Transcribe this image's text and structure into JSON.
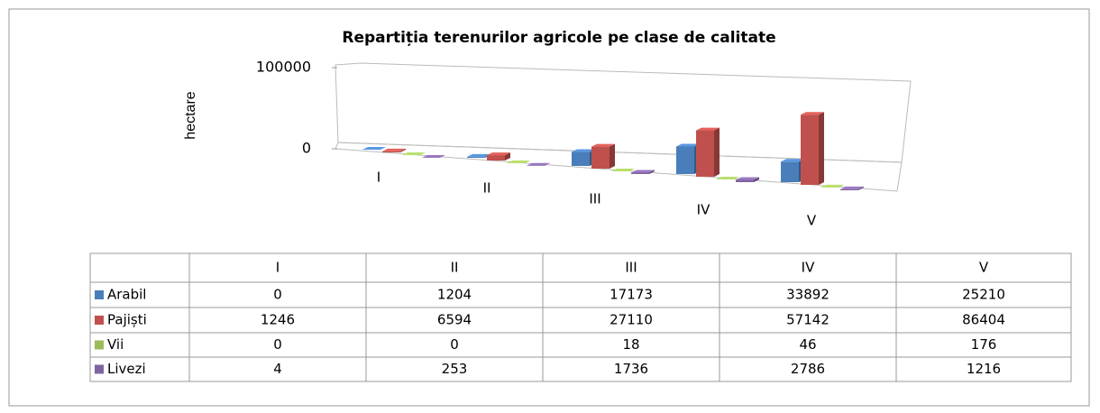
{
  "chart_data": {
    "type": "bar",
    "title": "Repartiția terenurilor agricole pe clase de calitate",
    "y_label": "hectare",
    "categories": [
      "I",
      "II",
      "III",
      "IV",
      "V"
    ],
    "series": [
      {
        "name": "Arabil",
        "color": "#4a7ebb",
        "values": [
          0,
          1204,
          17173,
          33892,
          25210
        ]
      },
      {
        "name": "Pajiști",
        "color": "#c0504d",
        "values": [
          1246,
          6594,
          27110,
          57142,
          86404
        ]
      },
      {
        "name": "Vii",
        "color": "#9bbb59",
        "values": [
          0,
          0,
          18,
          46,
          176
        ]
      },
      {
        "name": "Livezi",
        "color": "#8064a2",
        "values": [
          4,
          253,
          1736,
          2786,
          1216
        ]
      }
    ],
    "ylim": [
      0,
      100000
    ],
    "yticks": [
      0,
      100000
    ]
  }
}
